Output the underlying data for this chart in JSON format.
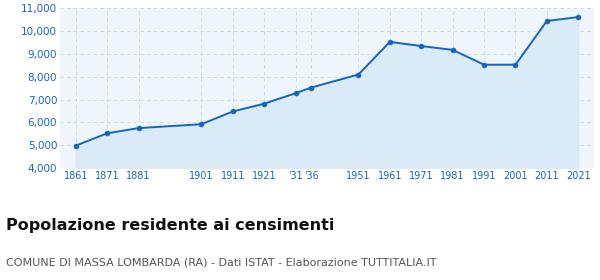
{
  "years": [
    1861,
    1871,
    1881,
    1901,
    1911,
    1921,
    1931,
    1936,
    1951,
    1961,
    1971,
    1981,
    1991,
    2001,
    2011,
    2021
  ],
  "population": [
    4980,
    5520,
    5750,
    5920,
    6480,
    6820,
    7280,
    7530,
    8100,
    9530,
    9350,
    9180,
    8530,
    8530,
    10450,
    10620
  ],
  "line_color": "#1565c0",
  "fill_color": "#daeaf7",
  "marker_color": "#1565c0",
  "bg_color": "#eef5fb",
  "grid_color": "#c5d8eb",
  "ylim": [
    4000,
    11000
  ],
  "yticks": [
    4000,
    5000,
    6000,
    7000,
    8000,
    9000,
    10000,
    11000
  ],
  "xlim_min": 1856,
  "xlim_max": 2026,
  "x_tick_positions": [
    1861,
    1871,
    1881,
    1901,
    1911,
    1921,
    1931,
    1936,
    1951,
    1961,
    1971,
    1981,
    1991,
    2001,
    2011,
    2021
  ],
  "x_tick_labels": [
    "1861",
    "1871",
    "1881",
    "1901",
    "1911",
    "1921",
    "'31",
    "'36",
    "1951",
    "1961",
    "1971",
    "1981",
    "1991",
    "2001",
    "2011",
    "2021"
  ],
  "title": "Popolazione residente ai censimenti",
  "subtitle": "COMUNE DI MASSA LOMBARDA (RA) - Dati ISTAT - Elaborazione TUTTITALIA.IT",
  "title_fontsize": 11.5,
  "subtitle_fontsize": 8.0,
  "tick_color": "#1565c0",
  "tick_fontsize": 7.0,
  "ytick_fontsize": 7.5
}
